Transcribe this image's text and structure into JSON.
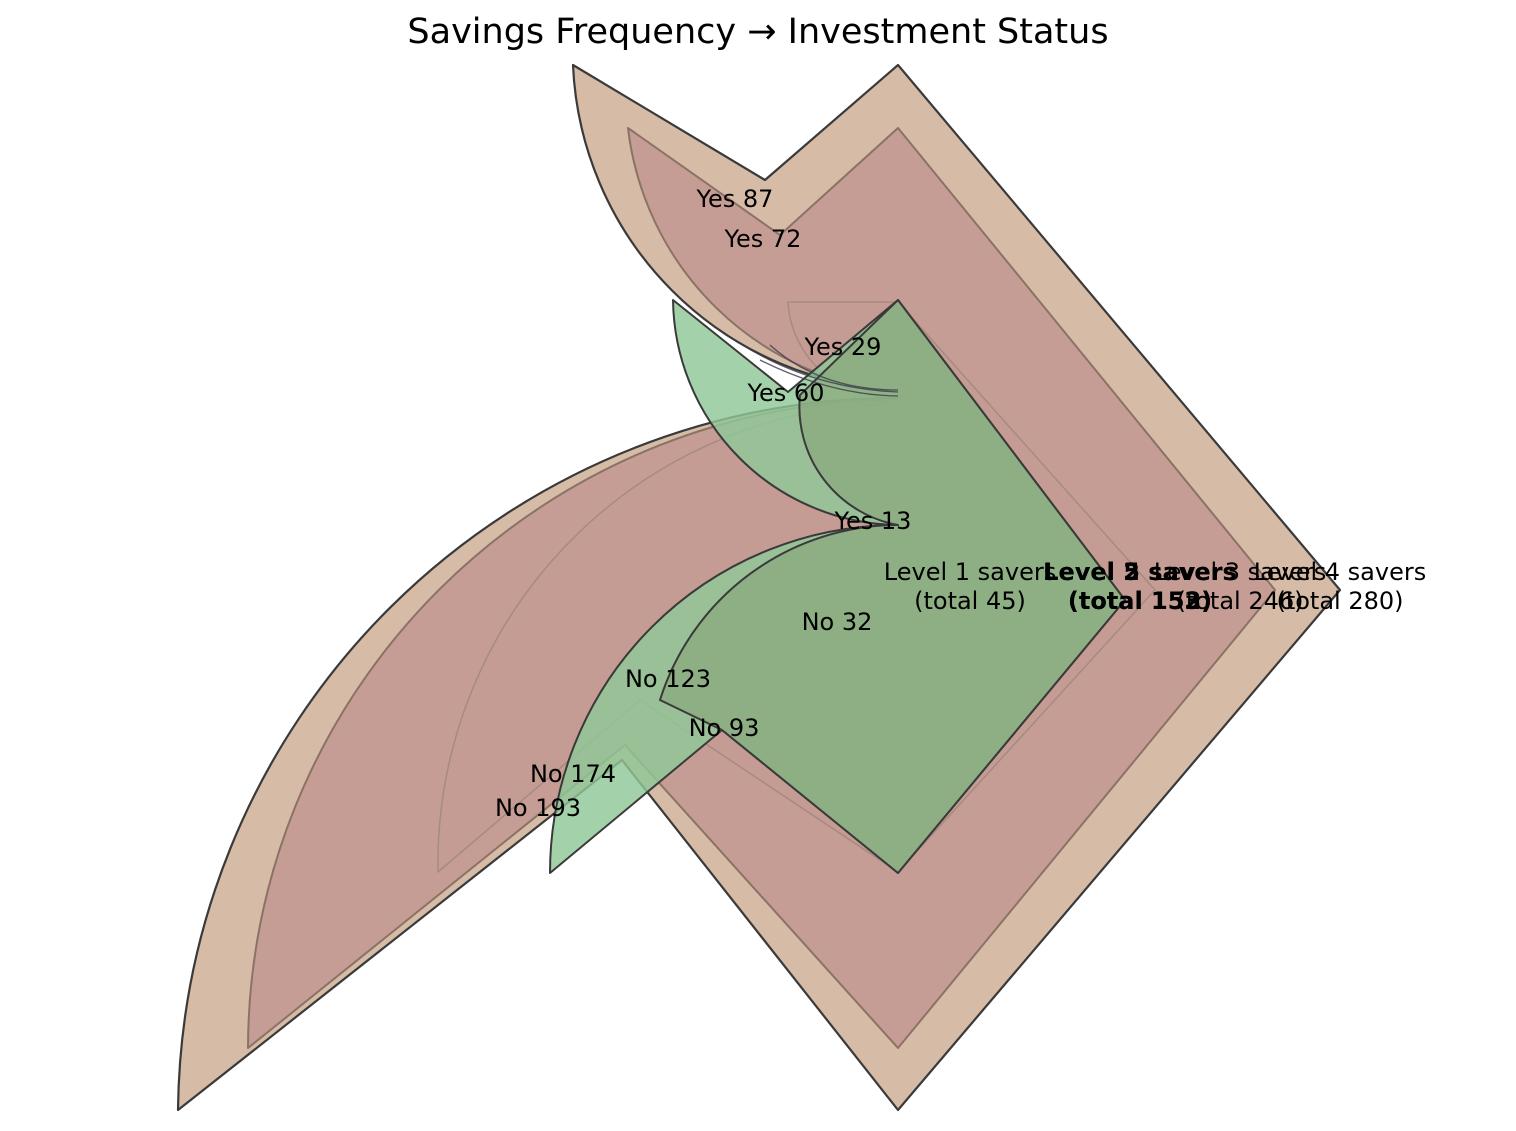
{
  "chart_data": {
    "type": "sankey",
    "title": "Savings Frequency → Investment Status",
    "nodes": [
      {
        "id": "l1",
        "label": "Level 1 savers",
        "total_label": "(total 45)",
        "total": 45,
        "bold": false
      },
      {
        "id": "l2",
        "label": "Level 2 savers",
        "total_label": "(total 152)",
        "total": 152,
        "bold": true
      },
      {
        "id": "l3",
        "label": "Level 3 savers",
        "total_label": "(total 246)",
        "total": 246,
        "bold": false
      },
      {
        "id": "l4",
        "label": "Level 4 savers",
        "total_label": "(total 280)",
        "total": 280,
        "bold": false
      },
      {
        "id": "l5",
        "label": "Level 5 savers",
        "total_label": "(total 153)",
        "total": 153,
        "bold": true
      }
    ],
    "flows": [
      {
        "source": "l1",
        "target": "Yes",
        "value": 13,
        "label": "Yes 13"
      },
      {
        "source": "l1",
        "target": "No",
        "value": 32,
        "label": "No 32"
      },
      {
        "source": "l2",
        "target": "Yes",
        "value": 29,
        "label": "Yes 29"
      },
      {
        "source": "l2",
        "target": "No",
        "value": 123,
        "label": "No 123"
      },
      {
        "source": "l3",
        "target": "Yes",
        "value": 72,
        "label": "Yes 72"
      },
      {
        "source": "l3",
        "target": "No",
        "value": 174,
        "label": "No 174"
      },
      {
        "source": "l4",
        "target": "Yes",
        "value": 87,
        "label": "Yes 87"
      },
      {
        "source": "l4",
        "target": "No",
        "value": 193,
        "label": "No 193"
      },
      {
        "source": "l5",
        "target": "Yes",
        "value": 60,
        "label": "Yes 60"
      },
      {
        "source": "l5",
        "target": "No",
        "value": 93,
        "label": "No 93"
      }
    ],
    "colors": {
      "tan": "#d2b49c",
      "rose": "#c49a92",
      "green": "#8fc897",
      "olive_green": "#8aa97c",
      "outline": "#3a3a3a"
    }
  }
}
